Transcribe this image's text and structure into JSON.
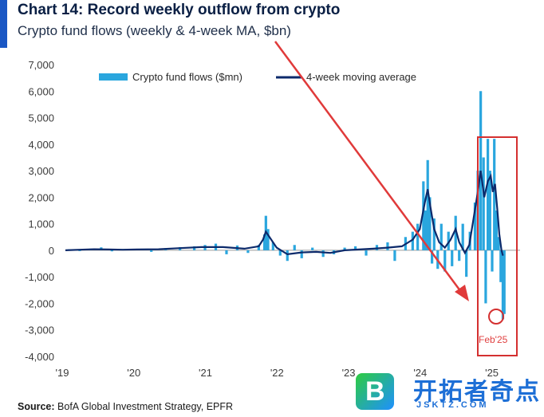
{
  "title": "Chart 14: Record weekly outflow from crypto",
  "subtitle": "Crypto fund flows (weekly & 4-week MA, $bn)",
  "source_label": "Source:",
  "source_text": "BofA Global Investment Strategy, EPFR",
  "annotation": "Feb'25",
  "watermark": {
    "logo_letter": "B",
    "name": "开拓者奇点",
    "url": "JSKTZ.COM"
  },
  "colors": {
    "bar": "#2aa6de",
    "ma": "#0c2a6b",
    "arrow": "#e03a3a",
    "box": "#d43030",
    "title_bar": "#1a57c4"
  },
  "chart_data": {
    "type": "bar",
    "title": "Chart 14: Record weekly outflow from crypto",
    "subtitle": "Crypto fund flows (weekly & 4-week MA, $bn)",
    "ylim": [
      -4000,
      7000
    ],
    "yticks": [
      "7,000",
      "6,000",
      "5,000",
      "4,000",
      "3,000",
      "2,000",
      "1,000",
      "0",
      "-1,000",
      "-2,000",
      "-3,000",
      "-4,000"
    ],
    "ytick_values": [
      7000,
      6000,
      5000,
      4000,
      3000,
      2000,
      1000,
      0,
      -1000,
      -2000,
      -3000,
      -4000
    ],
    "xticks": [
      "'19",
      "'20",
      "'21",
      "'22",
      "'23",
      "'24",
      "'25"
    ],
    "xtick_values": [
      2019,
      2020,
      2021,
      2022,
      2023,
      2024,
      2025
    ],
    "xlim": [
      2019,
      2025.35
    ],
    "legend": {
      "position": "top-center",
      "entries": [
        "Crypto fund flows ($mn)",
        "4-week moving average"
      ]
    },
    "series": [
      {
        "name": "Crypto fund flows ($mn)",
        "kind": "bar",
        "points": [
          [
            2019.05,
            40
          ],
          [
            2019.2,
            -30
          ],
          [
            2019.35,
            60
          ],
          [
            2019.5,
            110
          ],
          [
            2019.65,
            -40
          ],
          [
            2019.8,
            30
          ],
          [
            2020.0,
            50
          ],
          [
            2020.2,
            -60
          ],
          [
            2020.4,
            80
          ],
          [
            2020.6,
            120
          ],
          [
            2020.8,
            150
          ],
          [
            2020.95,
            200
          ],
          [
            2021.1,
            250
          ],
          [
            2021.25,
            -150
          ],
          [
            2021.4,
            180
          ],
          [
            2021.55,
            -100
          ],
          [
            2021.7,
            200
          ],
          [
            2021.78,
            600
          ],
          [
            2021.8,
            1300
          ],
          [
            2021.83,
            800
          ],
          [
            2021.9,
            300
          ],
          [
            2022.0,
            -200
          ],
          [
            2022.1,
            -400
          ],
          [
            2022.2,
            200
          ],
          [
            2022.3,
            -300
          ],
          [
            2022.45,
            100
          ],
          [
            2022.6,
            -250
          ],
          [
            2022.75,
            -150
          ],
          [
            2022.9,
            100
          ],
          [
            2023.05,
            150
          ],
          [
            2023.2,
            -200
          ],
          [
            2023.35,
            200
          ],
          [
            2023.5,
            300
          ],
          [
            2023.6,
            -400
          ],
          [
            2023.75,
            500
          ],
          [
            2023.85,
            700
          ],
          [
            2023.92,
            1000
          ],
          [
            2024.0,
            2600
          ],
          [
            2024.03,
            1500
          ],
          [
            2024.06,
            3400
          ],
          [
            2024.09,
            2000
          ],
          [
            2024.12,
            -500
          ],
          [
            2024.15,
            1200
          ],
          [
            2024.2,
            -700
          ],
          [
            2024.25,
            1000
          ],
          [
            2024.3,
            -800
          ],
          [
            2024.35,
            700
          ],
          [
            2024.4,
            -600
          ],
          [
            2024.45,
            1300
          ],
          [
            2024.5,
            -400
          ],
          [
            2024.55,
            1000
          ],
          [
            2024.6,
            -1000
          ],
          [
            2024.65,
            700
          ],
          [
            2024.72,
            1800
          ],
          [
            2024.76,
            3000
          ],
          [
            2024.8,
            6000
          ],
          [
            2024.84,
            3500
          ],
          [
            2024.87,
            -2000
          ],
          [
            2024.9,
            4200
          ],
          [
            2024.93,
            3000
          ],
          [
            2024.96,
            -800
          ],
          [
            2024.99,
            4200
          ],
          [
            2025.02,
            1500
          ],
          [
            2025.05,
            500
          ],
          [
            2025.08,
            -1200
          ],
          [
            2025.11,
            -2600
          ],
          [
            2025.13,
            -2400
          ]
        ]
      },
      {
        "name": "4-week moving average",
        "kind": "line",
        "points": [
          [
            2019.0,
            0
          ],
          [
            2019.2,
            20
          ],
          [
            2019.4,
            40
          ],
          [
            2019.6,
            30
          ],
          [
            2019.8,
            20
          ],
          [
            2020.0,
            30
          ],
          [
            2020.3,
            40
          ],
          [
            2020.6,
            80
          ],
          [
            2020.9,
            120
          ],
          [
            2021.2,
            120
          ],
          [
            2021.5,
            60
          ],
          [
            2021.7,
            150
          ],
          [
            2021.76,
            400
          ],
          [
            2021.8,
            700
          ],
          [
            2021.85,
            500
          ],
          [
            2021.95,
            100
          ],
          [
            2022.1,
            -150
          ],
          [
            2022.3,
            -80
          ],
          [
            2022.5,
            -60
          ],
          [
            2022.7,
            -100
          ],
          [
            2022.9,
            0
          ],
          [
            2023.1,
            30
          ],
          [
            2023.3,
            60
          ],
          [
            2023.5,
            100
          ],
          [
            2023.7,
            150
          ],
          [
            2023.85,
            400
          ],
          [
            2023.95,
            800
          ],
          [
            2024.02,
            1800
          ],
          [
            2024.06,
            2300
          ],
          [
            2024.1,
            1600
          ],
          [
            2024.15,
            800
          ],
          [
            2024.22,
            300
          ],
          [
            2024.3,
            100
          ],
          [
            2024.38,
            400
          ],
          [
            2024.45,
            800
          ],
          [
            2024.5,
            300
          ],
          [
            2024.58,
            -100
          ],
          [
            2024.64,
            200
          ],
          [
            2024.7,
            1200
          ],
          [
            2024.76,
            2200
          ],
          [
            2024.8,
            3000
          ],
          [
            2024.85,
            2000
          ],
          [
            2024.9,
            2600
          ],
          [
            2024.94,
            2800
          ],
          [
            2024.97,
            2200
          ],
          [
            2025.0,
            2500
          ],
          [
            2025.03,
            1600
          ],
          [
            2025.06,
            600
          ],
          [
            2025.09,
            0
          ],
          [
            2025.11,
            -200
          ]
        ]
      }
    ]
  }
}
